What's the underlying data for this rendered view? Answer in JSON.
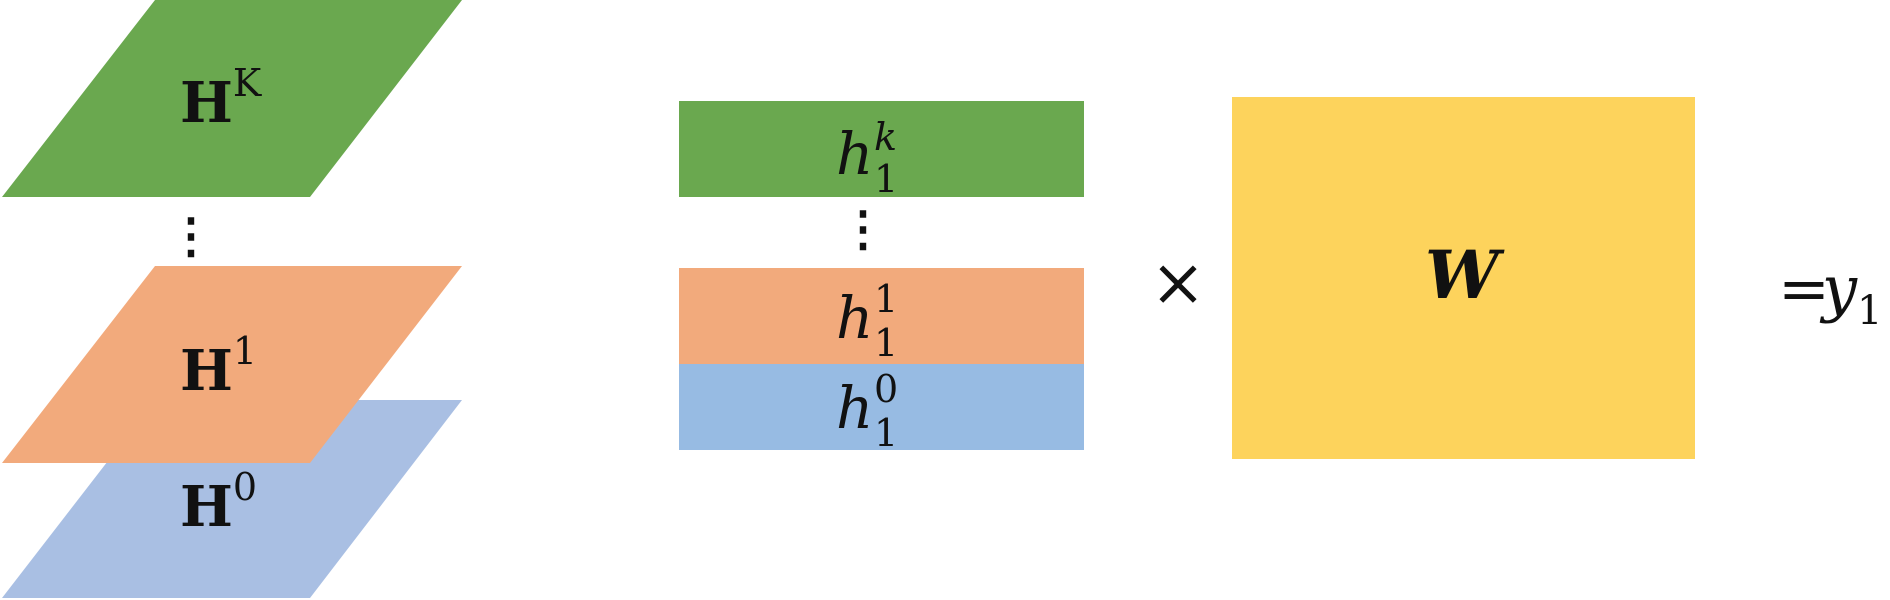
{
  "colors": {
    "green": "#6aa84f",
    "orange": "#f2aa7c",
    "blue_plane": "#a9bfe3",
    "blue_bar": "#97bbe3",
    "yellow": "#fdd35c",
    "text": "#111111"
  },
  "stack": {
    "top_layer": {
      "base": "H",
      "superscript": "K"
    },
    "middle_layer": {
      "base": "H",
      "superscript": "1"
    },
    "bottom_layer": {
      "base": "H",
      "superscript": "0"
    },
    "ellipsis": "⋮"
  },
  "vector": {
    "top_cell": {
      "base": "h",
      "superscript": "k",
      "subscript": "1"
    },
    "ellipsis": "⋮",
    "middle_cell": {
      "base": "h",
      "superscript": "1",
      "subscript": "1"
    },
    "bottom_cell": {
      "base": "h",
      "superscript": "0",
      "subscript": "1"
    }
  },
  "operator": "×",
  "matrix": {
    "label": "W"
  },
  "result": {
    "equals": "=",
    "base": "y",
    "subscript": "1"
  }
}
